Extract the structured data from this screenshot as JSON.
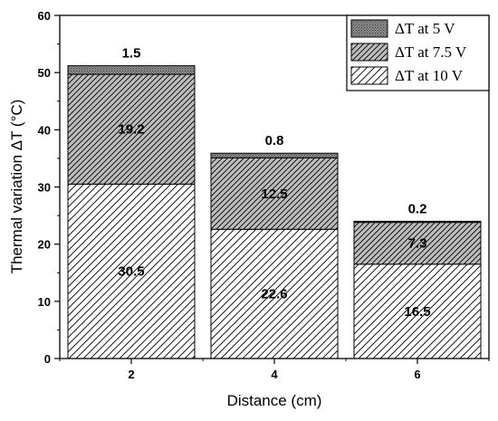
{
  "chart_data": {
    "type": "bar",
    "stacked": true,
    "categories": [
      "2",
      "4",
      "6"
    ],
    "x_values": [
      2,
      4,
      6
    ],
    "xlabel": "Distance (cm)",
    "ylabel": "Thermal variation ΔT (°C)",
    "xlim": [
      1,
      7
    ],
    "ylim": [
      0,
      60
    ],
    "yticks": [
      0,
      10,
      20,
      30,
      40,
      50,
      60
    ],
    "xticks": [
      2,
      4,
      6
    ],
    "grid": false,
    "legend_position": "top-right",
    "series": [
      {
        "name": "ΔT  at 10 V",
        "values": [
          30.5,
          22.6,
          16.5
        ],
        "labels": [
          "30.5",
          "22.6",
          "16.5"
        ],
        "pattern": "sparse-hatch"
      },
      {
        "name": "ΔT  at 7.5 V",
        "values": [
          19.2,
          12.5,
          7.3
        ],
        "labels": [
          "19.2",
          "12.5",
          "7.3"
        ],
        "pattern": "dense-hatch-gray"
      },
      {
        "name": "ΔT  at 5 V",
        "values": [
          1.5,
          0.8,
          0.2
        ],
        "labels": [
          "1.5",
          "0.8",
          "0.2"
        ],
        "pattern": "dotted-gray"
      }
    ],
    "legend_order": [
      2,
      1,
      0
    ]
  }
}
